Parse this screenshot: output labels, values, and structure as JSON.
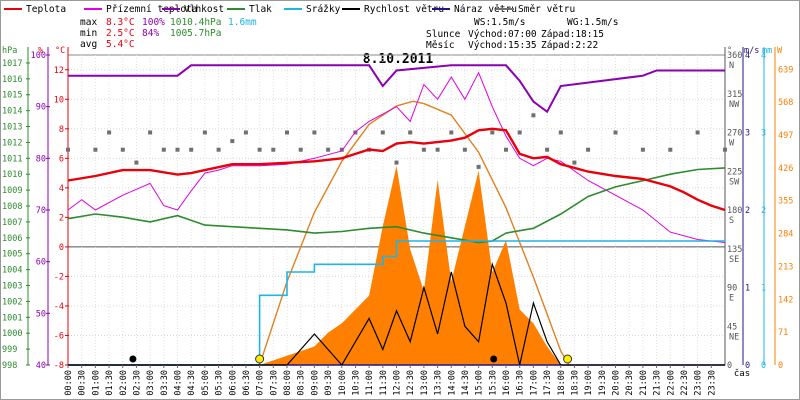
{
  "legend": [
    {
      "name": "Teplota",
      "color": "#e8000b"
    },
    {
      "name": "Přízemní teplota",
      "color": "#e000e0"
    },
    {
      "name": "Vlhkost",
      "color": "#8b00b0"
    },
    {
      "name": "Tlak",
      "color": "#2e8b2e"
    },
    {
      "name": "Srážky",
      "color": "#1eb4e6"
    },
    {
      "name": "Rychlost větru",
      "color": "#000000"
    },
    {
      "name": "Náraz větru",
      "color": "#22148a"
    },
    {
      "name": "Směr větru",
      "color": "#707070"
    }
  ],
  "stats": {
    "labels": [
      "max",
      "min",
      "avg"
    ],
    "temp": [
      "8.3°C",
      "2.5°C",
      "5.4°C"
    ],
    "humidity": [
      "100%",
      "84%",
      ""
    ],
    "pressure": [
      "1010.4hPa",
      "1005.7hPa",
      ""
    ],
    "rain": [
      "1.6mm",
      "",
      ""
    ]
  },
  "info": {
    "ws": "WS:1.5m/s",
    "wg": "WG:1.5m/s",
    "sun_label": "Slunce",
    "sunrise": "Východ:07:00",
    "sunset": "Západ:18:15",
    "moon_label": "Měsíc",
    "moonrise": "Východ:15:35",
    "moonset": "Západ:2:22"
  },
  "chart_data": {
    "type": "line",
    "title": "8.10.2011",
    "xlabel": "čas",
    "x_ticks": [
      "00:00",
      "00:30",
      "01:00",
      "01:30",
      "02:00",
      "02:30",
      "03:00",
      "03:30",
      "04:00",
      "04:30",
      "05:00",
      "05:30",
      "06:00",
      "06:30",
      "07:00",
      "07:30",
      "08:00",
      "08:30",
      "09:00",
      "09:30",
      "10:00",
      "10:30",
      "11:00",
      "11:30",
      "12:00",
      "12:30",
      "13:00",
      "13:30",
      "14:00",
      "14:30",
      "15:00",
      "15:30",
      "16:00",
      "16:30",
      "17:00",
      "17:30",
      "18:00",
      "18:30",
      "19:00",
      "19:30",
      "20:00",
      "20:30",
      "21:00",
      "21:30",
      "22:00",
      "22:30",
      "23:00",
      "23:30"
    ],
    "axes": {
      "hpa": {
        "label": "hPa",
        "ticks": [
          "1017",
          "1016",
          "1015",
          "1014",
          "1013",
          "1012",
          "1011",
          "1010",
          "1009",
          "1008",
          "1007",
          "1006",
          "1005",
          "1004",
          "1003",
          "1002",
          "1001",
          "1000",
          "999",
          "998"
        ],
        "range": [
          998,
          1017.5
        ]
      },
      "percent": {
        "label": "%",
        "ticks": [
          "100",
          "90",
          "80",
          "70",
          "60",
          "50",
          "40"
        ],
        "range": [
          40,
          100
        ]
      },
      "celsius": {
        "label": "°C",
        "ticks": [
          "12",
          "10",
          "8",
          "6",
          "4",
          "2",
          "0",
          "-2",
          "-4",
          "-6",
          "-8"
        ],
        "range": [
          -8,
          13
        ]
      },
      "degrees": {
        "label": "°",
        "ticks": [
          "360",
          "315",
          "270",
          "225",
          "180",
          "135",
          "90",
          "45",
          "0"
        ],
        "dirs": [
          "N",
          "NW",
          "W",
          "SW",
          "S",
          "SE",
          "E",
          "NE",
          ""
        ],
        "range": [
          0,
          360
        ]
      },
      "ms": {
        "label": "m/s",
        "ticks": [
          "4",
          "3",
          "2",
          "1",
          "0"
        ],
        "range": [
          0,
          4
        ]
      },
      "mm": {
        "label": "mm",
        "ticks": [
          "4",
          "3",
          "2",
          "1",
          "0"
        ],
        "range": [
          0,
          4
        ]
      },
      "wm2": {
        "label": "W",
        "ticks": [
          "639",
          "568",
          "497",
          "426",
          "355",
          "284",
          "213",
          "142",
          "71",
          "0"
        ],
        "range": [
          0,
          670
        ]
      }
    },
    "series": [
      {
        "name": "Teplota",
        "unit": "°C",
        "color": "#e8000b",
        "x": [
          0,
          1,
          2,
          3,
          4,
          4.5,
          5,
          6,
          7,
          8,
          9,
          10,
          10.5,
          11,
          11.5,
          12,
          12.5,
          13,
          13.5,
          14,
          14.5,
          15,
          15.5,
          16,
          16.5,
          17,
          17.5,
          18,
          19,
          20,
          21,
          22,
          22.5,
          23,
          23.5,
          24
        ],
        "y": [
          4.5,
          4.8,
          5.2,
          5.2,
          4.9,
          5.0,
          5.2,
          5.6,
          5.6,
          5.7,
          5.8,
          6.0,
          6.3,
          6.6,
          6.5,
          7.0,
          7.1,
          7.0,
          7.1,
          7.2,
          7.4,
          7.9,
          8.0,
          7.9,
          6.3,
          6.0,
          6.1,
          5.6,
          5.1,
          4.8,
          4.6,
          4.1,
          3.7,
          3.2,
          2.8,
          2.5
        ]
      },
      {
        "name": "Přízemní teplota",
        "unit": "°C",
        "color": "#e000e0",
        "x": [
          0,
          0.5,
          1,
          2,
          3,
          3.5,
          4,
          4.5,
          5,
          5.5,
          6,
          7,
          8,
          9,
          10,
          10.5,
          11,
          12,
          12.5,
          13,
          13.5,
          14,
          14.5,
          15,
          15.5,
          16,
          16.5,
          17,
          17.5,
          18,
          19,
          20,
          21,
          22,
          23,
          24
        ],
        "y": [
          2.5,
          3.2,
          2.5,
          3.5,
          4.3,
          2.8,
          2.5,
          3.8,
          5.0,
          5.2,
          5.5,
          5.5,
          5.6,
          6.0,
          6.5,
          7.8,
          8.5,
          9.5,
          8.5,
          11.0,
          10.0,
          11.5,
          10.0,
          11.8,
          9.5,
          7.5,
          6.0,
          5.5,
          6.0,
          5.8,
          4.5,
          3.5,
          2.5,
          1.0,
          0.5,
          0.3
        ]
      },
      {
        "name": "Vlhkost",
        "unit": "%",
        "color": "#8b00b0",
        "x": [
          0,
          4,
          4.5,
          11,
          11.5,
          12,
          14,
          15,
          16,
          16.5,
          17,
          17.5,
          18,
          21,
          21.5,
          24
        ],
        "y": [
          96,
          96,
          98,
          98,
          94,
          97,
          98,
          98,
          98,
          95,
          91,
          89,
          94,
          96,
          97,
          97
        ]
      },
      {
        "name": "Tlak",
        "unit": "hPa",
        "color": "#2e8b2e",
        "x": [
          0,
          1,
          2,
          3,
          4,
          5,
          6,
          7,
          8,
          9,
          10,
          11,
          12,
          13,
          14,
          15,
          15.5,
          16,
          17,
          18,
          19,
          20,
          21,
          22,
          23,
          24
        ],
        "y": [
          1007.2,
          1007.5,
          1007.3,
          1007.0,
          1007.4,
          1006.8,
          1006.7,
          1006.6,
          1006.5,
          1006.3,
          1006.4,
          1006.6,
          1006.7,
          1006.3,
          1006.0,
          1005.7,
          1005.8,
          1006.3,
          1006.6,
          1007.5,
          1008.6,
          1009.2,
          1009.6,
          1010.0,
          1010.3,
          1010.4
        ]
      },
      {
        "name": "Srážky",
        "unit": "mm",
        "color": "#1eb4e6",
        "x": [
          0,
          6.5,
          7,
          8,
          8.5,
          9,
          10,
          11,
          11.5,
          12,
          15,
          24
        ],
        "y": [
          0,
          0,
          0.9,
          1.2,
          1.2,
          1.3,
          1.3,
          1.3,
          1.4,
          1.6,
          1.6,
          1.6
        ]
      },
      {
        "name": "Rychlost větru",
        "unit": "m/s",
        "color": "#000000",
        "x": [
          0,
          7,
          8,
          9,
          10,
          10.5,
          11,
          11.5,
          12,
          12.5,
          13,
          13.5,
          14,
          14.5,
          15,
          15.5,
          16,
          16.5,
          17,
          17.5,
          18,
          19,
          24
        ],
        "y": [
          0,
          0,
          0,
          0.4,
          0,
          0.3,
          0.6,
          0.2,
          0.7,
          0.3,
          1.0,
          0.4,
          1.2,
          0.5,
          0.3,
          1.3,
          0.8,
          0,
          0.8,
          0.3,
          0,
          0,
          0
        ]
      },
      {
        "name": "Náraz větru",
        "unit": "m/s",
        "color": "#22148a",
        "x": [
          0,
          24
        ],
        "y": [
          0,
          0
        ]
      },
      {
        "name": "Směr větru",
        "unit": "°",
        "color": "#707070",
        "x": [
          0,
          1,
          1.5,
          2,
          2.5,
          3,
          3.5,
          4,
          4.5,
          5,
          5.5,
          6,
          6.5,
          7,
          7.5,
          8,
          8.5,
          9,
          9.5,
          10,
          10.5,
          11,
          11.5,
          12,
          12.5,
          13,
          13.5,
          14,
          14.5,
          15,
          15.5,
          16,
          16.5,
          17,
          17.5,
          18,
          18.5,
          19,
          20,
          21,
          22,
          23,
          24
        ],
        "y": [
          250,
          250,
          270,
          250,
          235,
          270,
          250,
          250,
          250,
          270,
          250,
          260,
          270,
          250,
          250,
          270,
          250,
          270,
          250,
          250,
          270,
          250,
          270,
          235,
          270,
          250,
          250,
          270,
          250,
          230,
          270,
          250,
          270,
          290,
          250,
          270,
          235,
          250,
          270,
          250,
          250,
          270,
          250
        ]
      },
      {
        "name": "Sluneční záření",
        "unit": "W",
        "color": "#ff7f00",
        "x": [
          0,
          7,
          8,
          9,
          9.5,
          10,
          10.5,
          11,
          11.5,
          12,
          12.5,
          13,
          13.5,
          14,
          14.5,
          15,
          15.5,
          16,
          16.5,
          17,
          17.5,
          18,
          19,
          24
        ],
        "y": [
          0,
          0,
          20,
          40,
          70,
          90,
          120,
          150,
          300,
          430,
          250,
          160,
          400,
          180,
          300,
          420,
          200,
          270,
          120,
          90,
          40,
          0,
          0,
          0
        ]
      },
      {
        "name": "Sluneční dráha",
        "unit": "W",
        "color": "#e08020",
        "x": [
          7,
          8,
          9,
          10,
          11,
          12,
          12.6,
          13,
          14,
          15,
          16,
          17,
          18,
          18.3
        ],
        "y": [
          0,
          180,
          330,
          440,
          520,
          560,
          570,
          565,
          540,
          460,
          340,
          190,
          30,
          0
        ]
      }
    ],
    "markers": {
      "sunrise_x": 7.0,
      "sunset_x": 18.25,
      "moonrise_x": 15.55,
      "moonset_x": 2.37
    }
  }
}
